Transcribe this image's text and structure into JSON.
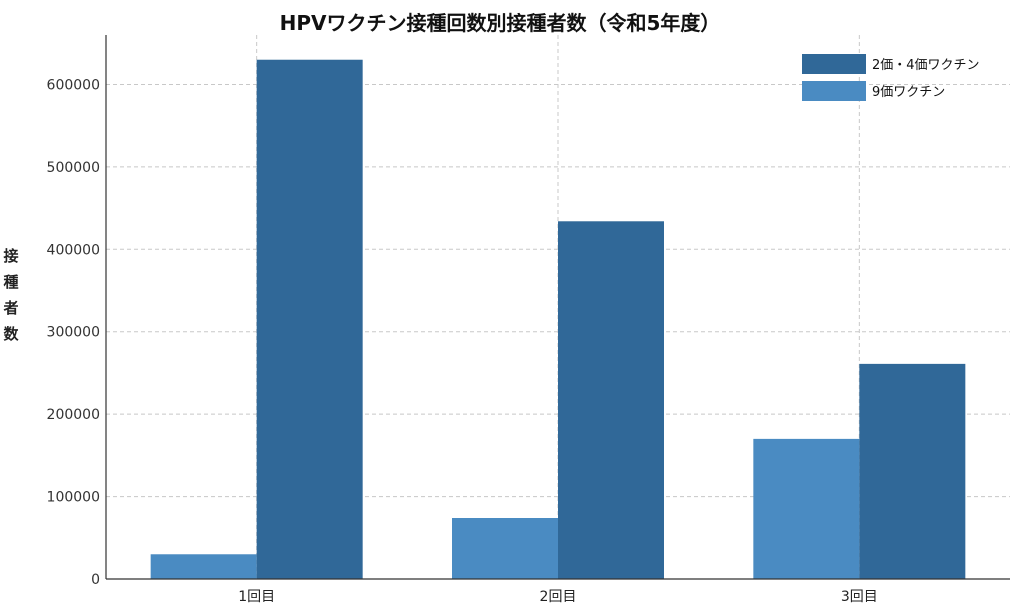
{
  "chart_data": {
    "type": "bar",
    "title": "HPVワクチン接種回数別接種者数（令和5年度）",
    "xlabel": "",
    "ylabel": "接種者数",
    "categories": [
      "1回目",
      "2回目",
      "3回目"
    ],
    "series": [
      {
        "name": "9価ワクチン",
        "color": "#4a8bc2",
        "values": [
          30000,
          74000,
          170000
        ]
      },
      {
        "name": "2価・4価ワクチン",
        "color": "#306898",
        "values": [
          630000,
          434000,
          261000
        ]
      }
    ],
    "ylim": [
      0,
      660000
    ],
    "yticks": [
      "0",
      "100000",
      "200000",
      "300000",
      "400000",
      "500000",
      "600000"
    ],
    "grid": true,
    "legend_position": "top-right"
  }
}
